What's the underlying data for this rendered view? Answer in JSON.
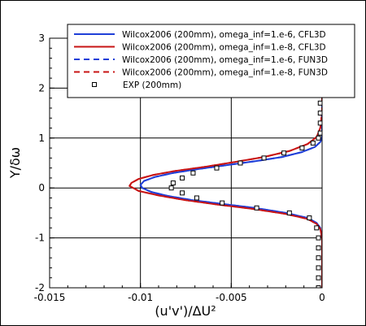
{
  "chart_data": {
    "type": "line",
    "title": "",
    "xlabel": "(u'v')/ΔU²",
    "ylabel": "Y/δω",
    "xlim": [
      -0.015,
      0
    ],
    "ylim": [
      -2,
      3
    ],
    "x_ticks": [
      "-0.015",
      "-0.01",
      "-0.005",
      "0"
    ],
    "y_ticks": [
      "-2",
      "-1",
      "0",
      "1",
      "2",
      "3"
    ],
    "grid": true,
    "legend_placement": "top-right",
    "series": [
      {
        "name": "Wilcox2006 (200mm), omega_inf=1.e-6, CFL3D",
        "color": "#1f3fd8",
        "style": "solid",
        "marker": "none",
        "points": [
          [
            0,
            -2
          ],
          [
            0,
            -1
          ],
          [
            -0.0001,
            -0.8
          ],
          [
            -0.0003,
            -0.7
          ],
          [
            -0.0008,
            -0.6
          ],
          [
            -0.002,
            -0.5
          ],
          [
            -0.0037,
            -0.4
          ],
          [
            -0.0055,
            -0.32
          ],
          [
            -0.0072,
            -0.24
          ],
          [
            -0.0085,
            -0.16
          ],
          [
            -0.0094,
            -0.08
          ],
          [
            -0.0099,
            0.0
          ],
          [
            -0.01,
            0.06
          ],
          [
            -0.0098,
            0.14
          ],
          [
            -0.0092,
            0.22
          ],
          [
            -0.0082,
            0.3
          ],
          [
            -0.0068,
            0.38
          ],
          [
            -0.0052,
            0.46
          ],
          [
            -0.0036,
            0.54
          ],
          [
            -0.0022,
            0.62
          ],
          [
            -0.0011,
            0.72
          ],
          [
            -0.0004,
            0.82
          ],
          [
            -0.0001,
            0.92
          ],
          [
            0,
            1.0
          ],
          [
            0,
            1.5
          ],
          [
            0,
            2.0
          ]
        ]
      },
      {
        "name": "Wilcox2006 (200mm), omega_inf=1.e-8, CFL3D",
        "color": "#c81414",
        "style": "solid",
        "marker": "none",
        "points": [
          [
            0,
            -2
          ],
          [
            0,
            -1
          ],
          [
            -0.0001,
            -0.82
          ],
          [
            -0.0003,
            -0.72
          ],
          [
            -0.0008,
            -0.62
          ],
          [
            -0.002,
            -0.52
          ],
          [
            -0.0038,
            -0.42
          ],
          [
            -0.0058,
            -0.33
          ],
          [
            -0.0076,
            -0.24
          ],
          [
            -0.009,
            -0.15
          ],
          [
            -0.0101,
            -0.06
          ],
          [
            -0.0106,
            0.04
          ],
          [
            -0.0105,
            0.1
          ],
          [
            -0.0101,
            0.18
          ],
          [
            -0.0093,
            0.26
          ],
          [
            -0.0081,
            0.34
          ],
          [
            -0.0065,
            0.42
          ],
          [
            -0.0048,
            0.52
          ],
          [
            -0.0032,
            0.62
          ],
          [
            -0.0018,
            0.74
          ],
          [
            -0.0008,
            0.88
          ],
          [
            -0.0003,
            1.02
          ],
          [
            -0.0001,
            1.2
          ],
          [
            0,
            1.5
          ],
          [
            0,
            1.9
          ]
        ]
      },
      {
        "name": "Wilcox2006 (200mm), omega_inf=1.e-6, FUN3D",
        "color": "#1f3fd8",
        "style": "dashed",
        "marker": "none",
        "points": [
          [
            0,
            -2
          ],
          [
            0,
            -1
          ],
          [
            -0.0001,
            -0.8
          ],
          [
            -0.0003,
            -0.7
          ],
          [
            -0.0008,
            -0.6
          ],
          [
            -0.002,
            -0.5
          ],
          [
            -0.0037,
            -0.4
          ],
          [
            -0.0055,
            -0.32
          ],
          [
            -0.0072,
            -0.24
          ],
          [
            -0.0085,
            -0.16
          ],
          [
            -0.0094,
            -0.08
          ],
          [
            -0.0099,
            0.0
          ],
          [
            -0.01,
            0.06
          ],
          [
            -0.0098,
            0.14
          ],
          [
            -0.0092,
            0.22
          ],
          [
            -0.0082,
            0.3
          ],
          [
            -0.0068,
            0.38
          ],
          [
            -0.0052,
            0.46
          ],
          [
            -0.0036,
            0.54
          ],
          [
            -0.0022,
            0.62
          ],
          [
            -0.0011,
            0.72
          ],
          [
            -0.0004,
            0.82
          ],
          [
            -0.0001,
            0.92
          ],
          [
            0,
            1.0
          ],
          [
            0,
            1.5
          ],
          [
            0,
            2.0
          ]
        ]
      },
      {
        "name": "Wilcox2006 (200mm), omega_inf=1.e-8, FUN3D",
        "color": "#c81414",
        "style": "dashed",
        "marker": "none",
        "points": [
          [
            0,
            -2
          ],
          [
            0,
            -1
          ],
          [
            -0.0001,
            -0.82
          ],
          [
            -0.0003,
            -0.72
          ],
          [
            -0.0008,
            -0.62
          ],
          [
            -0.002,
            -0.52
          ],
          [
            -0.0038,
            -0.42
          ],
          [
            -0.0058,
            -0.33
          ],
          [
            -0.0076,
            -0.24
          ],
          [
            -0.009,
            -0.15
          ],
          [
            -0.0101,
            -0.06
          ],
          [
            -0.0106,
            0.04
          ],
          [
            -0.0105,
            0.1
          ],
          [
            -0.0101,
            0.18
          ],
          [
            -0.0093,
            0.26
          ],
          [
            -0.0081,
            0.34
          ],
          [
            -0.0065,
            0.42
          ],
          [
            -0.0048,
            0.52
          ],
          [
            -0.0032,
            0.62
          ],
          [
            -0.0018,
            0.74
          ],
          [
            -0.0008,
            0.88
          ],
          [
            -0.0003,
            1.02
          ],
          [
            -0.0001,
            1.2
          ],
          [
            0,
            1.5
          ],
          [
            0,
            1.9
          ]
        ]
      },
      {
        "name": "EXP (200mm)",
        "color": "#000000",
        "style": "none",
        "marker": "square",
        "points": [
          [
            -0.0002,
            -2.0
          ],
          [
            -0.0002,
            -1.8
          ],
          [
            -0.0002,
            -1.6
          ],
          [
            -0.0002,
            -1.4
          ],
          [
            -0.0002,
            -1.2
          ],
          [
            -0.0002,
            -1.0
          ],
          [
            -0.0003,
            -0.8
          ],
          [
            -0.0007,
            -0.6
          ],
          [
            -0.0018,
            -0.5
          ],
          [
            -0.0036,
            -0.4
          ],
          [
            -0.0055,
            -0.3
          ],
          [
            -0.0069,
            -0.2
          ],
          [
            -0.0077,
            -0.1
          ],
          [
            -0.0083,
            0.0
          ],
          [
            -0.0082,
            0.1
          ],
          [
            -0.0077,
            0.2
          ],
          [
            -0.0071,
            0.3
          ],
          [
            -0.0058,
            0.4
          ],
          [
            -0.0045,
            0.5
          ],
          [
            -0.0032,
            0.6
          ],
          [
            -0.0021,
            0.7
          ],
          [
            -0.0011,
            0.8
          ],
          [
            -0.0005,
            0.9
          ],
          [
            -0.0002,
            1.0
          ],
          [
            -0.0001,
            1.1
          ],
          [
            -0.0001,
            1.3
          ],
          [
            -0.0001,
            1.5
          ],
          [
            -0.0001,
            1.7
          ],
          [
            -0.0001,
            1.9
          ]
        ]
      }
    ]
  }
}
